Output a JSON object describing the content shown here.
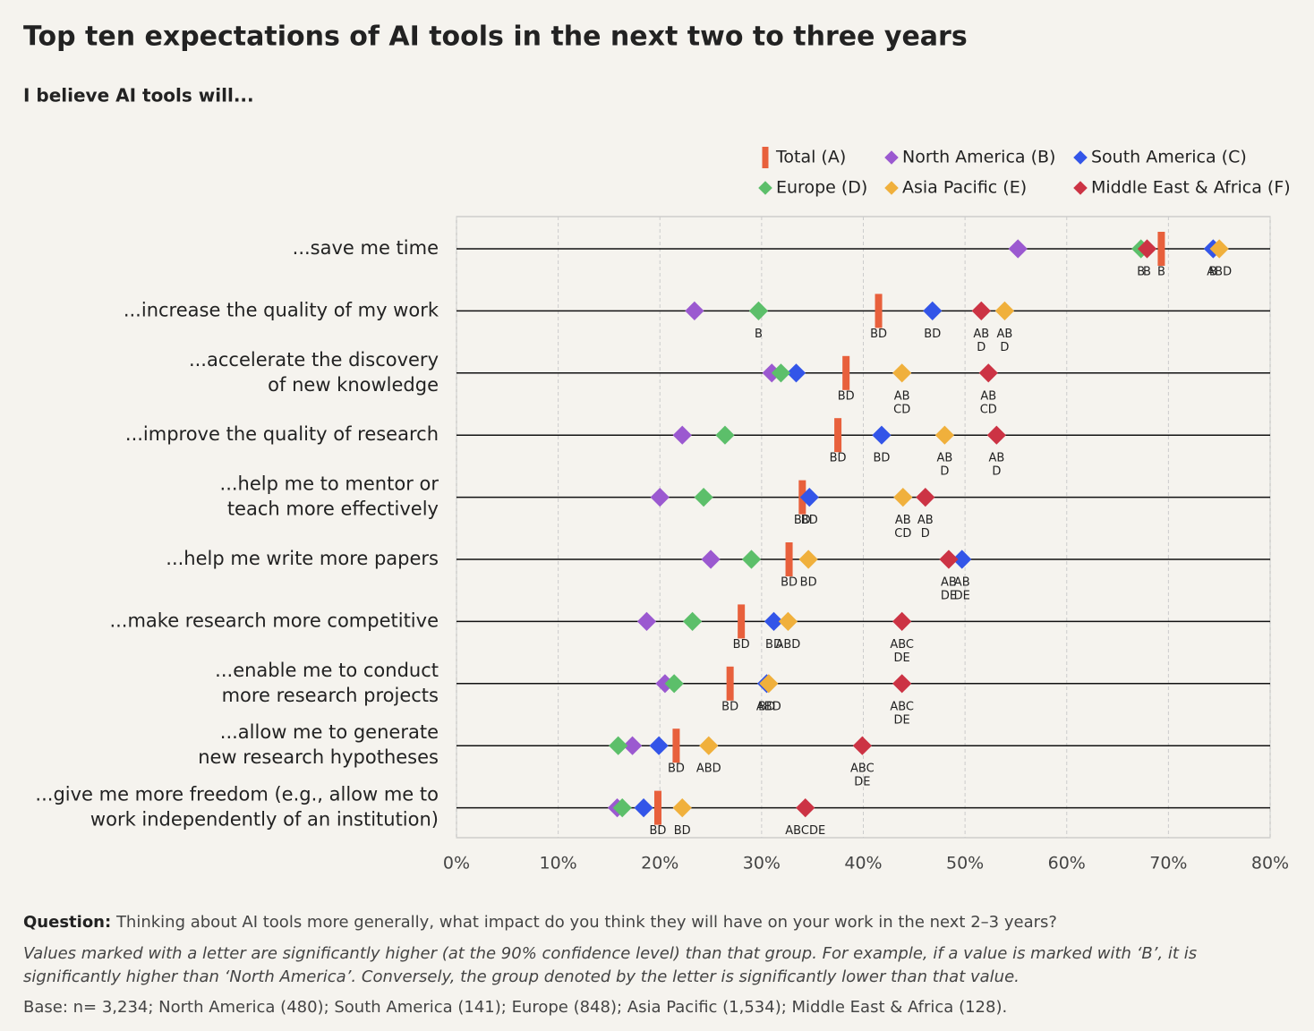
{
  "chart_data": {
    "type": "dot",
    "title": "Top ten expectations of AI tools in the next two to three years",
    "subtitle": "I believe AI tools will...",
    "categories": [
      [
        "...save me time"
      ],
      [
        "...increase the quality of my work"
      ],
      [
        "...accelerate the discovery",
        "of new knowledge"
      ],
      [
        "...improve the quality of research"
      ],
      [
        "...help me to mentor or",
        "teach more effectively"
      ],
      [
        "...help me write more papers"
      ],
      [
        "...make research more competitive"
      ],
      [
        "...enable me to conduct",
        "more research projects"
      ],
      [
        "...allow me to generate",
        "new research hypotheses"
      ],
      [
        "...give me more freedom (e.g., allow me to",
        "work independently of an institution)"
      ]
    ],
    "series": [
      {
        "name": "Total (A)",
        "color": "#e8603c",
        "marker": "bar",
        "values": [
          69.3,
          41.5,
          38.3,
          37.5,
          34.0,
          32.7,
          28.0,
          26.9,
          21.6,
          19.8
        ],
        "significance": [
          [
            "B"
          ],
          [
            "BD"
          ],
          [
            "BD"
          ],
          [
            "BD"
          ],
          [
            "BD"
          ],
          [
            "BD"
          ],
          [
            "BD"
          ],
          [
            "BD"
          ],
          [
            "BD"
          ],
          [
            "BD"
          ]
        ]
      },
      {
        "name": "North America (B)",
        "color": "#9b59d0",
        "marker": "diamond",
        "values": [
          55.2,
          23.4,
          31.0,
          22.2,
          20.0,
          25.0,
          18.7,
          20.5,
          17.3,
          15.8
        ],
        "significance": [
          null,
          null,
          null,
          null,
          null,
          null,
          null,
          null,
          null,
          null
        ]
      },
      {
        "name": "South America (C)",
        "color": "#3355e8",
        "marker": "diamond",
        "values": [
          74.4,
          46.8,
          33.4,
          41.8,
          34.7,
          49.7,
          31.2,
          30.5,
          19.9,
          18.4
        ],
        "significance": [
          [
            "B"
          ],
          [
            "BD"
          ],
          null,
          [
            "BD"
          ],
          [
            "BD"
          ],
          [
            "AB",
            "DE"
          ],
          [
            "BD"
          ],
          [
            "BD"
          ],
          null,
          null
        ]
      },
      {
        "name": "Europe (D)",
        "color": "#5cbf6a",
        "marker": "diamond",
        "values": [
          67.3,
          29.7,
          31.9,
          26.4,
          24.3,
          29.0,
          23.2,
          21.4,
          15.9,
          16.3
        ],
        "significance": [
          [
            "B"
          ],
          [
            "B"
          ],
          null,
          null,
          null,
          null,
          null,
          null,
          null,
          null
        ]
      },
      {
        "name": "Asia Pacific (E)",
        "color": "#f0b03c",
        "marker": "diamond",
        "values": [
          75.0,
          53.9,
          43.8,
          48.0,
          43.9,
          34.6,
          32.6,
          30.7,
          24.8,
          22.2
        ],
        "significance": [
          [
            "ABD"
          ],
          [
            "AB",
            "D"
          ],
          [
            "AB",
            "CD"
          ],
          [
            "AB",
            "D"
          ],
          [
            "AB",
            "CD"
          ],
          [
            "BD"
          ],
          [
            "ABD"
          ],
          [
            "ABD"
          ],
          [
            "ABD"
          ],
          [
            "BD"
          ]
        ]
      },
      {
        "name": "Middle East & Africa (F)",
        "color": "#cc3344",
        "marker": "diamond",
        "values": [
          67.9,
          51.6,
          52.3,
          53.1,
          46.1,
          48.4,
          43.8,
          43.8,
          39.9,
          34.3
        ],
        "significance": [
          [
            "B"
          ],
          [
            "AB",
            "D"
          ],
          [
            "AB",
            "CD"
          ],
          [
            "AB",
            "D"
          ],
          [
            "AB",
            "D"
          ],
          [
            "AB",
            "DE"
          ],
          [
            "ABC",
            "DE"
          ],
          [
            "ABC",
            "DE"
          ],
          [
            "ABC",
            "DE"
          ],
          [
            "ABCDE"
          ]
        ]
      }
    ],
    "xlim": [
      0,
      80
    ],
    "xticks": [
      {
        "value": 0,
        "label": "0%"
      },
      {
        "value": 10,
        "label": "10%"
      },
      {
        "value": 20,
        "label": "20%"
      },
      {
        "value": 30,
        "label": "30%"
      },
      {
        "value": 40,
        "label": "40%"
      },
      {
        "value": 50,
        "label": "50%"
      },
      {
        "value": 60,
        "label": "60%"
      },
      {
        "value": 70,
        "label": "70%"
      },
      {
        "value": 80,
        "label": "80%"
      }
    ],
    "grid": true
  },
  "footer": {
    "question_label": "Question:",
    "question": "Thinking about AI tools more generally, what impact do you think they will have on your work in the next 2–3 years?",
    "note": [
      "Values marked with a letter are significantly higher (at the 90% confidence level) than that group. For example, if a value is marked with ‘B’, it is",
      "significantly higher than ‘North America’. Conversely, the group denoted by the letter is significantly lower than that value."
    ],
    "base": "Base: n= 3,234; North America (480); South America (141); Europe (848); Asia Pacific (1,534); Middle East & Africa (128)."
  }
}
